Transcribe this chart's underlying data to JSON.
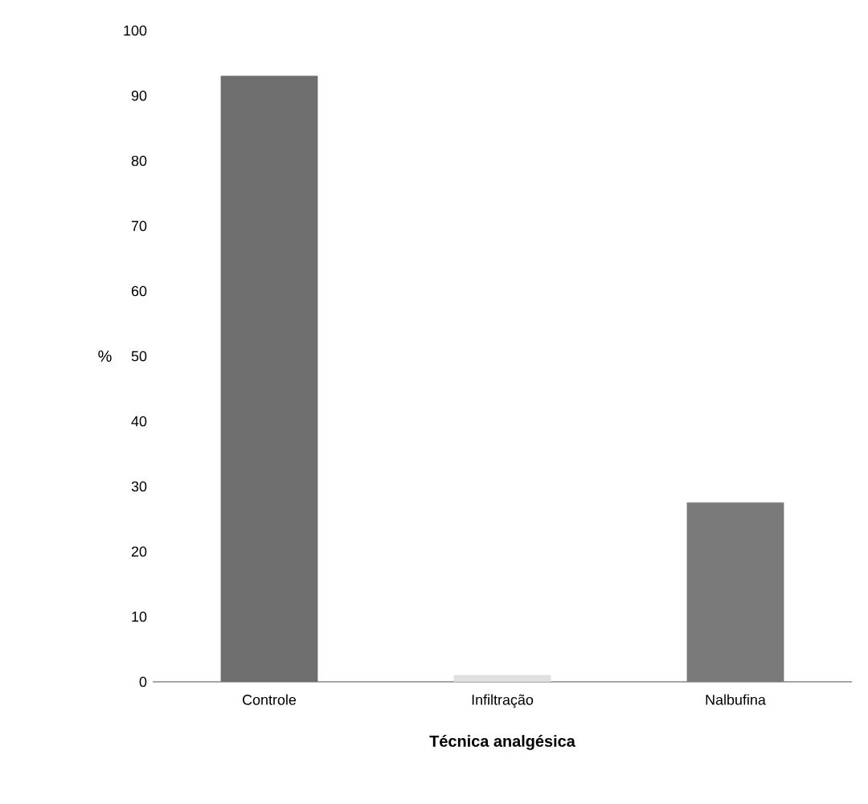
{
  "chart_data": {
    "type": "bar",
    "xlabel": "Técnica analgésica",
    "ylabel": "%",
    "categories": [
      "Controle",
      "Infiltração",
      "Nalbufina"
    ],
    "values": [
      93,
      1,
      27.5
    ],
    "colors": [
      "#6e6e6e",
      "#e0e0e0",
      "#7a7a7a"
    ],
    "ylim": [
      0,
      100
    ],
    "yticks": [
      0,
      10,
      20,
      30,
      40,
      50,
      60,
      70,
      80,
      90,
      100
    ],
    "grid": false
  }
}
